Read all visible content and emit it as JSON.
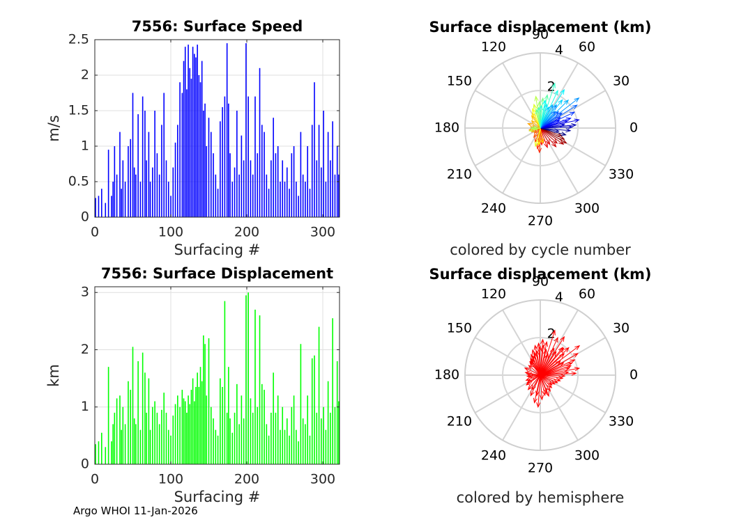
{
  "chart_data": [
    {
      "type": "bar",
      "title": "7556: Surface Speed",
      "xlabel": "Surfacing #",
      "ylabel": "m/s",
      "xlim": [
        0,
        322
      ],
      "ylim": [
        0,
        2.5
      ],
      "xticks": [
        0,
        100,
        200,
        300
      ],
      "yticks": [
        0,
        0.5,
        1,
        1.5,
        2,
        2.5
      ],
      "ytick_labels": [
        "0",
        "0.5",
        "1",
        "1.5",
        "2",
        "2.5"
      ],
      "grid": true,
      "color": "#0000ff",
      "x": [
        1,
        5,
        9,
        14,
        18,
        22,
        24,
        26,
        29,
        33,
        35,
        37,
        40,
        44,
        47,
        50,
        52,
        54,
        57,
        60,
        63,
        66,
        68,
        71,
        73,
        76,
        79,
        82,
        85,
        88,
        91,
        94,
        97,
        100,
        103,
        106,
        109,
        112,
        115,
        117,
        119,
        121,
        123,
        125,
        127,
        129,
        131,
        133,
        135,
        137,
        139,
        141,
        143,
        145,
        147,
        150,
        153,
        156,
        159,
        162,
        165,
        168,
        171,
        174,
        176,
        178,
        181,
        184,
        187,
        190,
        193,
        196,
        199,
        202,
        205,
        208,
        211,
        214,
        217,
        220,
        223,
        226,
        229,
        232,
        235,
        238,
        241,
        244,
        247,
        250,
        253,
        256,
        259,
        262,
        265,
        268,
        271,
        274,
        277,
        280,
        283,
        286,
        289,
        292,
        295,
        298,
        301,
        304,
        307,
        310,
        313,
        316,
        319,
        321
      ],
      "values": [
        0.27,
        0.3,
        0.4,
        0.2,
        0.95,
        0.3,
        0.5,
        1.0,
        0.6,
        1.2,
        0.4,
        0.8,
        0.5,
        1.0,
        1.1,
        1.75,
        0.7,
        0.6,
        1.45,
        0.5,
        1.7,
        1.5,
        0.8,
        1.2,
        0.5,
        0.7,
        1.5,
        0.9,
        0.6,
        1.3,
        1.75,
        0.8,
        0.5,
        0.3,
        0.7,
        1.05,
        1.3,
        1.9,
        1.75,
        2.2,
        2.4,
        1.8,
        2.43,
        2.1,
        1.95,
        2.4,
        2.3,
        2.25,
        2.43,
        2.0,
        1.9,
        2.2,
        1.5,
        1.6,
        1.0,
        1.4,
        1.2,
        0.9,
        0.6,
        0.4,
        1.35,
        1.55,
        1.7,
        2.45,
        1.6,
        0.9,
        0.5,
        0.7,
        1.5,
        0.6,
        1.15,
        0.8,
        2.45,
        1.7,
        0.8,
        0.6,
        1.7,
        0.9,
        2.1,
        1.3,
        1.2,
        0.6,
        0.4,
        0.8,
        1.4,
        0.9,
        1.0,
        0.5,
        0.8,
        0.5,
        0.7,
        0.4,
        0.9,
        1.0,
        0.5,
        0.3,
        1.2,
        0.6,
        0.5,
        1.0,
        0.4,
        1.3,
        1.9,
        0.8,
        1.3,
        0.7,
        1.5,
        0.5,
        1.2,
        0.8,
        1.35,
        0.6,
        1.0,
        0.6
      ]
    },
    {
      "type": "bar",
      "title": "7556: Surface Displacement",
      "xlabel": "Surfacing #",
      "ylabel": "km",
      "xlim": [
        0,
        322
      ],
      "ylim": [
        0,
        3.1
      ],
      "xticks": [
        0,
        100,
        200,
        300
      ],
      "yticks": [
        0,
        1,
        2,
        3
      ],
      "grid": true,
      "color": "#00ff00",
      "x": [
        1,
        5,
        9,
        14,
        18,
        22,
        24,
        26,
        29,
        33,
        35,
        37,
        40,
        44,
        47,
        50,
        52,
        54,
        57,
        60,
        63,
        66,
        68,
        71,
        73,
        76,
        79,
        82,
        85,
        88,
        91,
        94,
        97,
        100,
        103,
        106,
        109,
        112,
        115,
        117,
        119,
        121,
        123,
        125,
        127,
        129,
        131,
        133,
        135,
        137,
        139,
        141,
        143,
        145,
        147,
        150,
        153,
        156,
        159,
        162,
        165,
        168,
        171,
        174,
        176,
        178,
        181,
        184,
        187,
        190,
        193,
        196,
        199,
        202,
        205,
        208,
        211,
        214,
        217,
        220,
        223,
        226,
        229,
        232,
        235,
        238,
        241,
        244,
        247,
        250,
        253,
        256,
        259,
        262,
        265,
        268,
        271,
        274,
        277,
        280,
        283,
        286,
        289,
        292,
        295,
        298,
        301,
        304,
        307,
        310,
        313,
        316,
        319,
        321
      ],
      "values": [
        0.35,
        0.4,
        0.55,
        0.3,
        1.7,
        0.4,
        0.7,
        0.9,
        1.15,
        1.2,
        0.6,
        1.0,
        0.7,
        1.45,
        1.3,
        2.05,
        0.8,
        0.7,
        1.8,
        0.6,
        1.95,
        1.6,
        0.9,
        1.5,
        0.6,
        1.0,
        1.1,
        0.9,
        0.7,
        0.95,
        1.25,
        0.9,
        0.6,
        0.5,
        0.85,
        1.05,
        1.2,
        1.0,
        1.3,
        1.15,
        1.1,
        0.9,
        1.2,
        1.05,
        1.3,
        1.5,
        1.1,
        1.35,
        1.6,
        1.35,
        1.7,
        1.45,
        2.25,
        2.1,
        1.2,
        2.2,
        1.0,
        0.8,
        0.6,
        0.5,
        1.5,
        1.35,
        2.85,
        0.9,
        1.7,
        0.8,
        0.55,
        0.9,
        1.4,
        0.7,
        1.2,
        0.8,
        2.95,
        3.0,
        1.15,
        0.9,
        2.7,
        1.0,
        2.6,
        1.4,
        1.3,
        0.7,
        0.5,
        0.9,
        1.6,
        0.9,
        1.2,
        0.6,
        1.0,
        0.6,
        0.8,
        0.5,
        1.0,
        1.2,
        0.6,
        0.4,
        2.1,
        0.8,
        0.7,
        1.2,
        0.5,
        1.85,
        1.9,
        0.9,
        2.4,
        0.8,
        1.0,
        0.6,
        1.45,
        0.9,
        2.55,
        1.0,
        1.8,
        1.1
      ]
    },
    {
      "type": "polar",
      "title": "Surface displacement (km)",
      "caption": "colored by cycle number",
      "r_max": 4,
      "r_ticks": [
        2,
        4
      ],
      "theta_ticks": [
        0,
        30,
        60,
        90,
        120,
        150,
        180,
        210,
        240,
        270,
        300,
        330
      ],
      "angles_deg": [
        5,
        12,
        18,
        25,
        32,
        38,
        45,
        52,
        58,
        65,
        72,
        78,
        85,
        92,
        98,
        105,
        112,
        118,
        125,
        140,
        160,
        175,
        190,
        205,
        220,
        235,
        250,
        262,
        268,
        275,
        282,
        290,
        300,
        310,
        318,
        325,
        330,
        335,
        340,
        345,
        350,
        355,
        2,
        8,
        15,
        22,
        28,
        35,
        42,
        48,
        55,
        62,
        68,
        75,
        80,
        88,
        95,
        102,
        180,
        185,
        195,
        255,
        265,
        280
      ],
      "magnitudes_km": [
        1.9,
        2.1,
        1.7,
        2.0,
        2.3,
        2.6,
        2.1,
        1.9,
        2.4,
        2.2,
        2.5,
        1.8,
        1.6,
        1.4,
        1.7,
        1.3,
        1.1,
        0.9,
        0.8,
        0.6,
        0.7,
        0.5,
        0.6,
        0.5,
        0.4,
        0.6,
        0.8,
        1.1,
        1.3,
        0.9,
        0.8,
        1.1,
        1.0,
        1.3,
        1.2,
        1.5,
        1.6,
        1.4,
        1.2,
        1.4,
        1.0,
        1.6,
        1.7,
        1.3,
        1.5,
        1.1,
        1.2,
        1.4,
        1.3,
        1.2,
        1.5,
        1.4,
        1.2,
        1.3,
        1.5,
        1.2,
        1.1,
        1.0,
        0.5,
        0.4,
        0.6,
        1.0,
        0.9,
        0.8
      ],
      "cycle_numbers": [
        20,
        35,
        50,
        60,
        75,
        90,
        100,
        110,
        120,
        130,
        140,
        150,
        160,
        170,
        180,
        190,
        200,
        210,
        220,
        225,
        230,
        235,
        240,
        245,
        250,
        255,
        260,
        265,
        270,
        275,
        280,
        285,
        290,
        295,
        300,
        305,
        310,
        315,
        320,
        5,
        10,
        15,
        25,
        30,
        40,
        45,
        55,
        65,
        70,
        80,
        85,
        95,
        105,
        115,
        125,
        135,
        145,
        155,
        165,
        175,
        185,
        195,
        205,
        215
      ],
      "colormap": "jet"
    },
    {
      "type": "polar",
      "title": "Surface displacement (km)",
      "caption": "colored by hemisphere",
      "r_max": 4,
      "r_ticks": [
        2,
        4
      ],
      "theta_ticks": [
        0,
        30,
        60,
        90,
        120,
        150,
        180,
        210,
        240,
        270,
        300,
        330
      ],
      "color": "#ff0000",
      "angles_deg": [
        3,
        10,
        17,
        24,
        30,
        37,
        44,
        51,
        58,
        65,
        72,
        79,
        86,
        93,
        100,
        107,
        114,
        121,
        128,
        140,
        155,
        170,
        185,
        200,
        215,
        230,
        245,
        258,
        266,
        274,
        283,
        292,
        302,
        312,
        320,
        328,
        336,
        344,
        352,
        358,
        6,
        14,
        21,
        28,
        35,
        42,
        49,
        56,
        63,
        70,
        77,
        84,
        91,
        98,
        105,
        112,
        119,
        126,
        175,
        190,
        210,
        240,
        260,
        290
      ],
      "magnitudes_km": [
        1.9,
        2.1,
        1.7,
        2.0,
        2.3,
        2.6,
        2.1,
        1.9,
        2.4,
        2.2,
        2.5,
        1.8,
        1.9,
        1.7,
        1.6,
        1.4,
        1.2,
        1.0,
        0.9,
        0.8,
        0.9,
        0.8,
        0.7,
        0.8,
        0.9,
        1.0,
        1.2,
        1.5,
        1.7,
        1.3,
        1.1,
        1.2,
        1.0,
        0.9,
        0.8,
        0.9,
        1.0,
        1.1,
        1.2,
        1.3,
        1.5,
        1.6,
        1.8,
        1.4,
        1.3,
        1.7,
        1.9,
        1.5,
        1.6,
        1.2,
        1.4,
        1.6,
        1.5,
        1.3,
        1.2,
        1.1,
        1.0,
        0.9,
        0.7,
        0.6,
        0.8,
        0.9,
        1.1,
        1.0
      ]
    }
  ],
  "footer": "Argo WHOI 11-Jan-2026"
}
